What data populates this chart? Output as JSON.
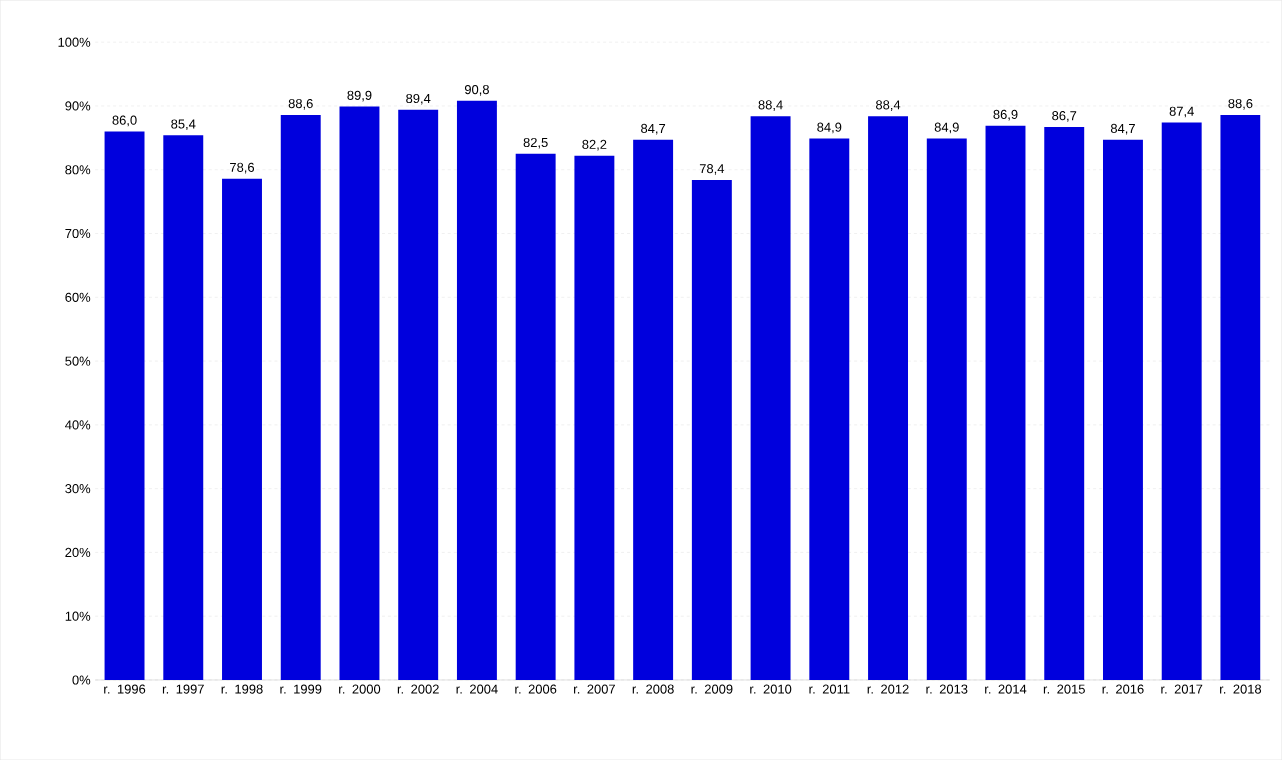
{
  "chart_data": {
    "type": "bar",
    "categories": [
      "r. 1996",
      "r. 1997",
      "r. 1998",
      "r. 1999",
      "r. 2000",
      "r. 2002",
      "r. 2004",
      "r. 2006",
      "r. 2007",
      "r. 2008",
      "r. 2009",
      "r. 2010",
      "r. 2011",
      "r. 2012",
      "r. 2013",
      "r. 2014",
      "r. 2015",
      "r. 2016",
      "r. 2017",
      "r. 2018"
    ],
    "values": [
      86.0,
      85.4,
      78.6,
      88.6,
      89.9,
      89.4,
      90.8,
      82.5,
      82.2,
      84.7,
      78.4,
      88.4,
      84.9,
      88.4,
      84.9,
      86.9,
      86.7,
      84.7,
      87.4,
      88.6
    ],
    "value_labels": [
      "86,0",
      "85,4",
      "78,6",
      "88,6",
      "89,9",
      "89,4",
      "90,8",
      "82,5",
      "82,2",
      "84,7",
      "78,4",
      "88,4",
      "84,9",
      "88,4",
      "84,9",
      "86,9",
      "86,7",
      "84,7",
      "87,4",
      "88,6"
    ],
    "color": "#0000dd",
    "ylim": [
      0,
      100
    ],
    "yticks": [
      {
        "value": 0,
        "label": "0%"
      },
      {
        "value": 10,
        "label": "10%"
      },
      {
        "value": 20,
        "label": "20%"
      },
      {
        "value": 30,
        "label": "30%"
      },
      {
        "value": 40,
        "label": "40%"
      },
      {
        "value": 50,
        "label": "50%"
      },
      {
        "value": 60,
        "label": "60%"
      },
      {
        "value": 70,
        "label": "70%"
      },
      {
        "value": 80,
        "label": "80%"
      },
      {
        "value": 90,
        "label": "90%"
      },
      {
        "value": 100,
        "label": "100%"
      }
    ],
    "grid": "y"
  }
}
